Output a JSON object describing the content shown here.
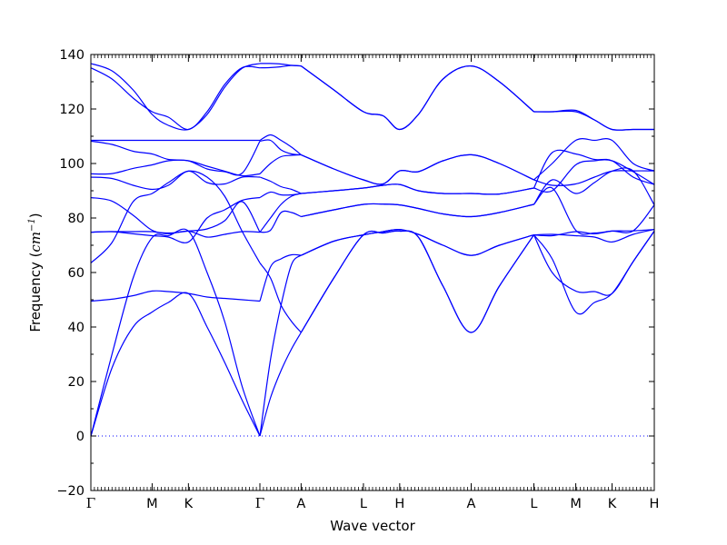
{
  "chart_data": {
    "type": "line",
    "xlabel": "Wave vector",
    "ylabel_prefix": "Frequency (",
    "ylabel_unit": "cm",
    "ylabel_exp": "−1",
    "ylabel_suffix": ")",
    "ylim": [
      -20,
      140
    ],
    "xlim": [
      0,
      16.0
    ],
    "grid": false,
    "yticks": [
      -20,
      0,
      20,
      40,
      60,
      80,
      100,
      120,
      140
    ],
    "ytick_labels": [
      "−20",
      "0",
      "20",
      "40",
      "60",
      "80",
      "100",
      "120",
      "140"
    ],
    "line_color": "#0000ff",
    "zero_line": {
      "y": 0,
      "style": "dotted",
      "color": "#0000ff"
    },
    "xticks": [
      {
        "label": "Γ",
        "x": 0.0
      },
      {
        "label": "M",
        "x": 1.74
      },
      {
        "label": "K",
        "x": 2.77
      },
      {
        "label": "Γ",
        "x": 4.8
      },
      {
        "label": "A",
        "x": 5.97
      },
      {
        "label": "L",
        "x": 7.74
      },
      {
        "label": "H",
        "x": 8.77
      },
      {
        "label": "A",
        "x": 10.8
      },
      {
        "label": "L",
        "x": 12.58
      },
      {
        "label": "M",
        "x": 13.77
      },
      {
        "label": "K",
        "x": 14.8
      },
      {
        "label": "H",
        "x": 16.0
      }
    ],
    "segments": [
      {
        "path": "Γ-M-K-Γ",
        "points": [
          {
            "x": 0.0,
            "bands": [
              0,
              0,
              49.5,
              63.5,
              74.8,
              74.8,
              87.5,
              95,
              96.2,
              108.2,
              108.5,
              135.1,
              136.7
            ]
          },
          {
            "x": 0.6,
            "bands": [
              25,
              30,
              50.2,
              71,
              75,
              75,
              86.2,
              94.5,
              96.3,
              107,
              108.5,
              131,
              134
            ]
          },
          {
            "x": 1.2,
            "bands": [
              40,
              58,
              51.5,
              86,
              74.2,
              75,
              81,
              92,
              98.2,
              104.5,
              108.5,
              124,
              127
            ]
          },
          {
            "x": 1.74,
            "bands": [
              45.5,
              72.8,
              53.2,
              89,
              73.5,
              75,
              75.5,
              90.5,
              99.5,
              103.5,
              108.5,
              119,
              118
            ]
          },
          {
            "x": 2.2,
            "bands": [
              49,
              73.5,
              53,
              93,
              73,
              74.2,
              74.5,
              92,
              101,
              101.5,
              108.5,
              117,
              114
            ]
          },
          {
            "x": 2.77,
            "bands": [
              52.3,
              75.2,
              52.3,
              97.2,
              71.2,
              75.2,
              75.2,
              97.2,
              101,
              101,
              108.5,
              112.5,
              112.5
            ]
          },
          {
            "x": 3.3,
            "bands": [
              40,
              60,
              51,
              95,
              80,
              73,
              76,
              93,
              99,
              98,
              108.5,
              119,
              118
            ]
          },
          {
            "x": 3.8,
            "bands": [
              27,
              42,
              50.5,
              88,
              83,
              74,
              79,
              92.5,
              97.2,
              97,
              108.5,
              129,
              128
            ]
          },
          {
            "x": 4.3,
            "bands": [
              13,
              18,
              50,
              75,
              86.5,
              75,
              86,
              95,
              95.5,
              96.5,
              108.5,
              135.2,
              135
            ]
          },
          {
            "x": 4.8,
            "bands": [
              0,
              0,
              49.5,
              63.5,
              87.5,
              74.8,
              74.8,
              95,
              96.2,
              108.2,
              108.5,
              135.1,
              136.7
            ]
          }
        ]
      },
      {
        "path": "Γ-A",
        "points": [
          {
            "x": 4.8,
            "bands": [
              0,
              0,
              49.5,
              63.5,
              74.8,
              74.8,
              87.5,
              95,
              96.2,
              108.2,
              108.5,
              135.1,
              136.7
            ]
          },
          {
            "x": 5.1,
            "bands": [
              14,
              28,
              62,
              58,
              80,
              75.5,
              89.5,
              93.5,
              100,
              108.5,
              110.5,
              135.2,
              136.7
            ]
          },
          {
            "x": 5.4,
            "bands": [
              24,
              48,
              65,
              48,
              85,
              82,
              88.5,
              91.5,
              102.5,
              105,
              108.5,
              135.5,
              136.5
            ]
          },
          {
            "x": 5.7,
            "bands": [
              32,
              63,
              66.5,
              42,
              88,
              82,
              88.5,
              90.5,
              103,
              103.5,
              106,
              136,
              136
            ]
          },
          {
            "x": 5.97,
            "bands": [
              38,
              66.3,
              66.3,
              38,
              89,
              80.5,
              89,
              89,
              103.2,
              103.2,
              103.2,
              135.8,
              135.8
            ]
          }
        ]
      },
      {
        "path": "A-L-H-A",
        "points": [
          {
            "x": 5.97,
            "bands": [
              38,
              38,
              66.3,
              66.3,
              80.5,
              80.5,
              89,
              89,
              103.2,
              103.2,
              135.8,
              135.8
            ]
          },
          {
            "x": 6.9,
            "bands": [
              58,
              58,
              71.5,
              71.5,
              83,
              83,
              90,
              90,
              98,
              98,
              127,
              127
            ]
          },
          {
            "x": 7.74,
            "bands": [
              73.8,
              73.8,
              73.8,
              73.8,
              85,
              85,
              91,
              91,
              94,
              94,
              119,
              119
            ]
          },
          {
            "x": 8.3,
            "bands": [
              74.5,
              74.5,
              75,
              75,
              85.1,
              85.1,
              92,
              92,
              92.5,
              92.5,
              117.5,
              117.5
            ]
          },
          {
            "x": 8.77,
            "bands": [
              75.2,
              75.2,
              75.8,
              75.8,
              84.8,
              84.8,
              92.3,
              92.3,
              97.3,
              97.3,
              112.5,
              112.5
            ]
          },
          {
            "x": 9.3,
            "bands": [
              73,
              73,
              74,
              74,
              83.5,
              83.5,
              90,
              90,
              97,
              97,
              118,
              118
            ]
          },
          {
            "x": 10.0,
            "bands": [
              55,
              55,
              70,
              70,
              81.5,
              81.5,
              89,
              89,
              101,
              101,
              131,
              131
            ]
          },
          {
            "x": 10.8,
            "bands": [
              38,
              38,
              66.3,
              66.3,
              80.5,
              80.5,
              89,
              89,
              103.2,
              103.2,
              135.8,
              135.8
            ]
          },
          {
            "x": 11.6,
            "bands": [
              55,
              55,
              70,
              70,
              82,
              82,
              88.8,
              88.8,
              100,
              100,
              130,
              130
            ]
          },
          {
            "x": 12.58,
            "bands": [
              73.8,
              73.8,
              73.8,
              73.8,
              85,
              85,
              91,
              91,
              94,
              94,
              119,
              119
            ]
          }
        ]
      },
      {
        "path": "L-M-K-H",
        "points": [
          {
            "x": 12.58,
            "bands": [
              73.8,
              73.8,
              73.8,
              73.8,
              85,
              85,
              91,
              91,
              94,
              94,
              119,
              119
            ]
          },
          {
            "x": 13.1,
            "bands": [
              65,
              60,
              74,
              73.5,
              91,
              94,
              90,
              104,
              100,
              92,
              119,
              119
            ]
          },
          {
            "x": 13.77,
            "bands": [
              45.5,
              53.2,
              73.5,
              75,
              75.5,
              89,
              99.5,
              103.5,
              108.5,
              92.5,
              119,
              119.5
            ]
          },
          {
            "x": 14.3,
            "bands": [
              49,
              53,
              73,
              74.2,
              74.5,
              93,
              101,
              101.5,
              108.5,
              95,
              116,
              116
            ]
          },
          {
            "x": 14.8,
            "bands": [
              52.3,
              52.3,
              71.2,
              75.2,
              75.2,
              97.2,
              101,
              101,
              108.5,
              97.2,
              112.5,
              112.5
            ]
          },
          {
            "x": 15.4,
            "bands": [
              64,
              64,
              74,
              75.3,
              75.3,
              97.3,
              97,
              95,
              100,
              97.3,
              112.5,
              112.5
            ]
          },
          {
            "x": 16.0,
            "bands": [
              75.2,
              75.2,
              75.8,
              75.8,
              84.8,
              84.8,
              92.3,
              92.3,
              97.3,
              97.3,
              112.5,
              112.5
            ]
          }
        ]
      }
    ]
  }
}
